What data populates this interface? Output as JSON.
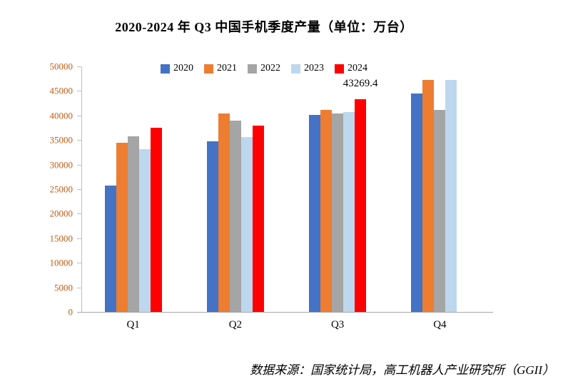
{
  "page": {
    "source": "数据来源：国家统计局，高工机器人产业研究所（GGII）"
  },
  "chart_data": {
    "type": "bar",
    "title": "2020-2024 年 Q3 中国手机季度产量（单位：万台）",
    "categories": [
      "Q1",
      "Q2",
      "Q3",
      "Q4"
    ],
    "series": [
      {
        "name": "2020",
        "color": "#4472C4",
        "values": [
          25700,
          34800,
          40100,
          44500
        ]
      },
      {
        "name": "2021",
        "color": "#ED7D31",
        "values": [
          34500,
          40400,
          41200,
          47300
        ]
      },
      {
        "name": "2022",
        "color": "#A5A5A5",
        "values": [
          35700,
          39000,
          40400,
          41100
        ]
      },
      {
        "name": "2023",
        "color": "#BDD7EE",
        "values": [
          33200,
          35600,
          40700,
          47300
        ]
      },
      {
        "name": "2024",
        "color": "#FF0000",
        "values": [
          37500,
          37900,
          43269.4,
          null
        ]
      }
    ],
    "ylim": [
      0,
      50000
    ],
    "ytick_step": 5000,
    "ytick_labels": [
      "0",
      "5000",
      "10000",
      "15000",
      "20000",
      "25000",
      "30000",
      "35000",
      "40000",
      "45000",
      "50000"
    ],
    "annotations": [
      {
        "series": "2024",
        "category": "Q3",
        "text": "43269.4"
      }
    ],
    "legend_position": "top",
    "grid": false
  },
  "colors": {
    "axis_label": "#C55A11",
    "axis_line": "#BFBFBF",
    "baseline": "#A6A6A6",
    "text": "#000000"
  }
}
